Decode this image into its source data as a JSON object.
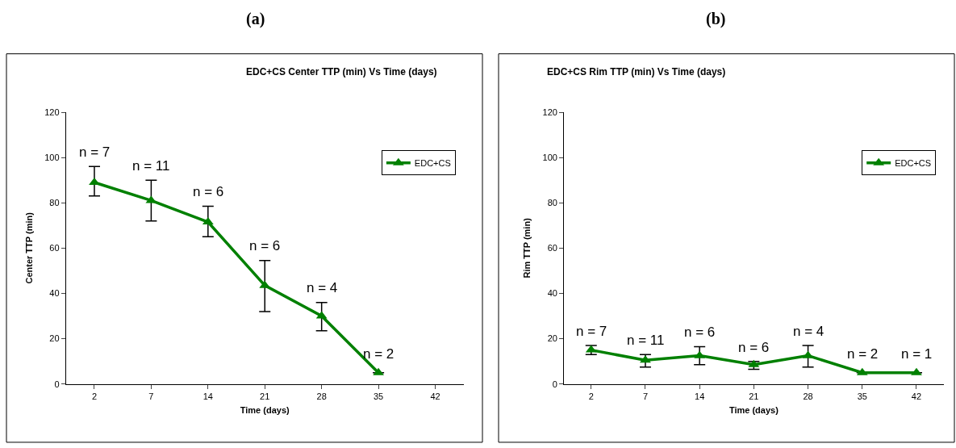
{
  "chart_data": [
    {
      "type": "line",
      "title": "(a)",
      "subtitle": "EDC+CS Center TTP (min) Vs Time (days)",
      "xlabel": "Time (days)",
      "ylabel": "Center TTP (min)",
      "categories": [
        "2",
        "7",
        "14",
        "21",
        "28",
        "35",
        "42"
      ],
      "series": [
        {
          "name": "EDC+CS",
          "color": "#008000",
          "values": [
            89,
            81,
            71.5,
            43.5,
            30,
            5,
            null
          ],
          "errors": [
            [
              83,
              96
            ],
            [
              72,
              90
            ],
            [
              65,
              78.5
            ],
            [
              32,
              54.5
            ],
            [
              23.5,
              36
            ],
            null,
            null
          ]
        }
      ],
      "ylim": [
        0,
        120
      ],
      "yticks": [
        0,
        20,
        40,
        60,
        80,
        100,
        120
      ],
      "grid": false,
      "legend": "top right",
      "marker": "triangle",
      "line_style": "solid",
      "annotations": [
        {
          "text": "n = 7",
          "x": "2",
          "y": 89
        },
        {
          "text": "n = 11",
          "x": "7",
          "y": 81
        },
        {
          "text": "n = 6",
          "x": "14",
          "y": 71.5
        },
        {
          "text": "n = 6",
          "x": "21",
          "y": 43.5
        },
        {
          "text": "n = 4",
          "x": "28",
          "y": 30
        },
        {
          "text": "n = 2",
          "x": "35",
          "y": 5
        }
      ]
    },
    {
      "type": "line",
      "title": "(b)",
      "subtitle": "EDC+CS Rim TTP (min) Vs Time (days)",
      "xlabel": "Time (days)",
      "ylabel": "Rim TTP (min)",
      "categories": [
        "2",
        "7",
        "14",
        "21",
        "28",
        "35",
        "42"
      ],
      "series": [
        {
          "name": "EDC+CS",
          "color": "#008000",
          "values": [
            15,
            10.5,
            12.5,
            8.5,
            12.5,
            5,
            5
          ],
          "errors": [
            [
              13,
              17
            ],
            [
              7.5,
              13
            ],
            [
              8.5,
              16.5
            ],
            [
              6.5,
              10
            ],
            [
              7.5,
              17
            ],
            null,
            null
          ]
        }
      ],
      "ylim": [
        0,
        120
      ],
      "yticks": [
        0,
        20,
        40,
        60,
        80,
        100,
        120
      ],
      "grid": false,
      "legend": "top right",
      "marker": "triangle",
      "line_style": "solid",
      "annotations": [
        {
          "text": "n = 7",
          "x": "2",
          "y": 15
        },
        {
          "text": "n = 11",
          "x": "7",
          "y": 10.5
        },
        {
          "text": "n = 6",
          "x": "14",
          "y": 12.5
        },
        {
          "text": "n = 6",
          "x": "21",
          "y": 8.5
        },
        {
          "text": "n = 4",
          "x": "28",
          "y": 12.5
        },
        {
          "text": "n = 2",
          "x": "35",
          "y": 5
        },
        {
          "text": "n = 1",
          "x": "42",
          "y": 5
        }
      ]
    }
  ]
}
